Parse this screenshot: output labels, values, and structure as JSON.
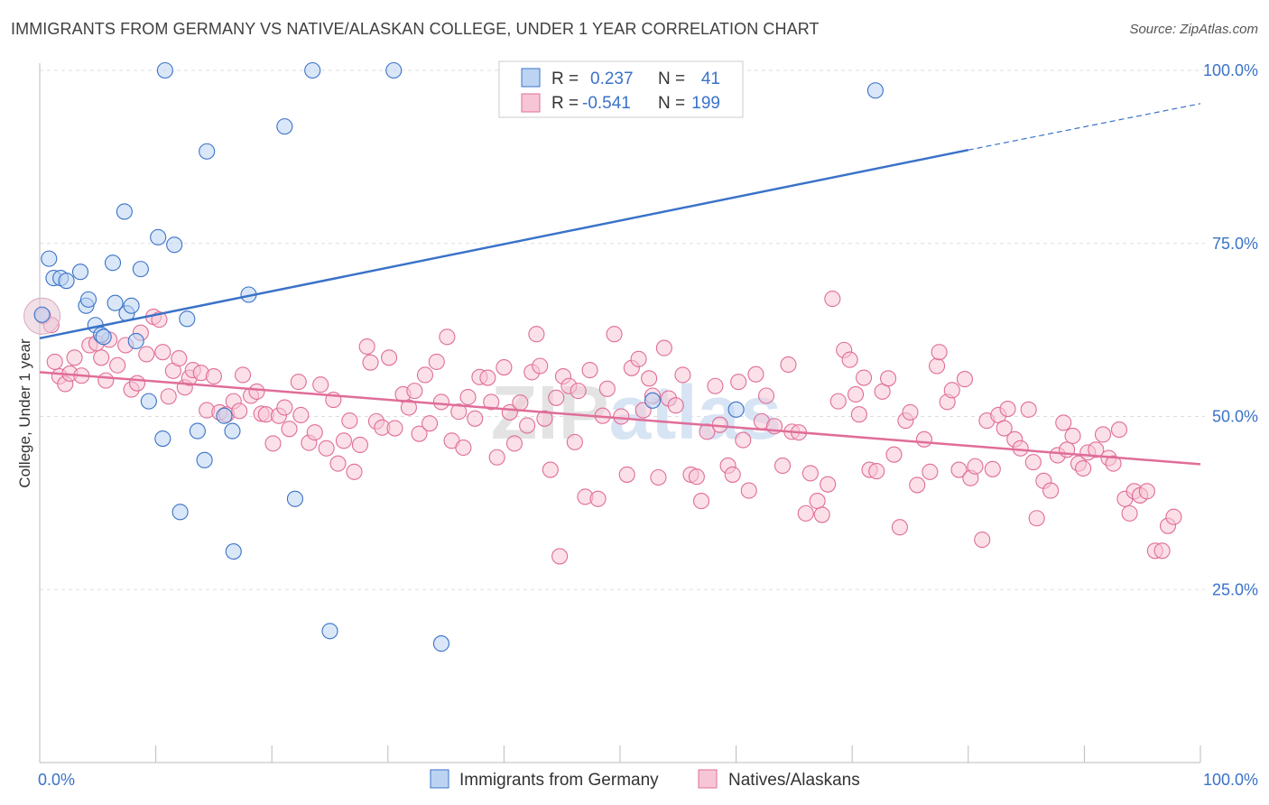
{
  "title": "IMMIGRANTS FROM GERMANY VS NATIVE/ALASKAN COLLEGE, UNDER 1 YEAR CORRELATION CHART",
  "source": "Source: ZipAtlas.com",
  "watermark": "ZIPatlas",
  "colors": {
    "blue": "#3a72c8",
    "blue_fill": "#bcd4f2",
    "pink": "#e06d98",
    "pink_fill": "#f7c6d6"
  },
  "legend": {
    "rows": [
      {
        "r_label": "R =",
        "r_value": "0.237",
        "n_label": "N =",
        "n_value": "41"
      },
      {
        "r_label": "R =",
        "r_value": "-0.541",
        "n_label": "N =",
        "n_value": "199"
      }
    ]
  },
  "bottom_legend": [
    "Immigrants from Germany",
    "Natives/Alaskans"
  ],
  "chart_data": {
    "type": "scatter",
    "title": "IMMIGRANTS FROM GERMANY VS NATIVE/ALASKAN COLLEGE, UNDER 1 YEAR CORRELATION CHART",
    "xlabel": "",
    "ylabel": "College, Under 1 year",
    "xlim": [
      0,
      100
    ],
    "ylim": [
      0,
      105
    ],
    "x_tick_labels": [
      "0.0%",
      "100.0%"
    ],
    "y_tick_labels": [
      "25.0%",
      "50.0%",
      "75.0%",
      "100.0%"
    ],
    "y_ticks": [
      25,
      50,
      75,
      100
    ],
    "grid": true,
    "series": [
      {
        "name": "Immigrants from Germany",
        "color": "#3a72c8",
        "trend": {
          "x0": 0,
          "y0": 61.3,
          "x1": 80,
          "y1": 88.5,
          "dash_to": 100,
          "dash_y": 95.2
        },
        "points": [
          [
            0.2,
            64.7
          ],
          [
            0.8,
            72.8
          ],
          [
            1.2,
            70.0
          ],
          [
            1.8,
            70.0
          ],
          [
            2.3,
            69.6
          ],
          [
            3.5,
            70.9
          ],
          [
            4.0,
            66.0
          ],
          [
            4.2,
            66.9
          ],
          [
            4.8,
            63.2
          ],
          [
            5.3,
            61.8
          ],
          [
            6.3,
            72.2
          ],
          [
            6.5,
            66.4
          ],
          [
            7.3,
            79.6
          ],
          [
            7.5,
            64.9
          ],
          [
            7.9,
            66.0
          ],
          [
            8.3,
            60.9
          ],
          [
            8.7,
            71.3
          ],
          [
            9.4,
            52.2
          ],
          [
            10.2,
            75.9
          ],
          [
            10.6,
            46.8
          ],
          [
            10.8,
            100.0
          ],
          [
            11.6,
            74.8
          ],
          [
            12.1,
            36.2
          ],
          [
            12.7,
            64.1
          ],
          [
            13.6,
            47.9
          ],
          [
            14.2,
            43.7
          ],
          [
            14.4,
            88.3
          ],
          [
            15.9,
            50.1
          ],
          [
            16.6,
            47.9
          ],
          [
            16.7,
            30.5
          ],
          [
            18.0,
            67.6
          ],
          [
            21.1,
            91.9
          ],
          [
            22.0,
            38.1
          ],
          [
            23.5,
            100.0
          ],
          [
            25.0,
            19.0
          ],
          [
            30.5,
            100.0
          ],
          [
            34.6,
            17.2
          ],
          [
            52.8,
            52.3
          ],
          [
            60.0,
            51.0
          ],
          [
            72.0,
            97.1
          ],
          [
            5.5,
            61.5
          ]
        ]
      },
      {
        "name": "Natives/Alaskans",
        "color": "#e06d98",
        "trend": {
          "x0": 0,
          "y0": 56.4,
          "x1": 100,
          "y1": 43.1
        },
        "points": [
          [
            0.3,
            64.5
          ],
          [
            1.0,
            63.2
          ],
          [
            1.3,
            57.9
          ],
          [
            1.7,
            55.8
          ],
          [
            2.2,
            54.7
          ],
          [
            2.6,
            56.2
          ],
          [
            3.0,
            58.5
          ],
          [
            3.6,
            55.9
          ],
          [
            4.3,
            60.3
          ],
          [
            4.9,
            60.6
          ],
          [
            5.3,
            58.5
          ],
          [
            5.7,
            55.2
          ],
          [
            6.0,
            61.1
          ],
          [
            6.7,
            57.4
          ],
          [
            7.4,
            60.3
          ],
          [
            7.9,
            53.9
          ],
          [
            8.4,
            54.8
          ],
          [
            8.7,
            62.1
          ],
          [
            9.2,
            59.0
          ],
          [
            9.8,
            64.4
          ],
          [
            10.3,
            64.0
          ],
          [
            10.6,
            59.3
          ],
          [
            11.1,
            52.9
          ],
          [
            11.5,
            56.6
          ],
          [
            12.0,
            58.4
          ],
          [
            12.5,
            54.2
          ],
          [
            12.9,
            55.6
          ],
          [
            13.2,
            56.7
          ],
          [
            13.9,
            56.3
          ],
          [
            14.4,
            50.9
          ],
          [
            15.0,
            55.8
          ],
          [
            15.5,
            50.6
          ],
          [
            16.1,
            50.3
          ],
          [
            16.7,
            52.2
          ],
          [
            17.2,
            50.8
          ],
          [
            17.5,
            56.0
          ],
          [
            18.2,
            53.0
          ],
          [
            18.7,
            53.6
          ],
          [
            19.1,
            50.4
          ],
          [
            19.5,
            50.3
          ],
          [
            20.1,
            46.1
          ],
          [
            20.6,
            50.1
          ],
          [
            21.1,
            51.3
          ],
          [
            21.5,
            48.2
          ],
          [
            22.3,
            55.0
          ],
          [
            22.5,
            50.2
          ],
          [
            23.2,
            46.2
          ],
          [
            23.7,
            47.7
          ],
          [
            24.2,
            54.6
          ],
          [
            24.7,
            45.4
          ],
          [
            25.3,
            52.4
          ],
          [
            25.7,
            43.2
          ],
          [
            26.2,
            46.5
          ],
          [
            26.7,
            49.4
          ],
          [
            27.1,
            42.0
          ],
          [
            27.6,
            45.9
          ],
          [
            28.2,
            60.1
          ],
          [
            28.5,
            57.8
          ],
          [
            29.0,
            49.3
          ],
          [
            29.5,
            48.4
          ],
          [
            30.1,
            58.5
          ],
          [
            30.6,
            48.3
          ],
          [
            31.3,
            53.2
          ],
          [
            31.8,
            51.3
          ],
          [
            32.3,
            53.7
          ],
          [
            32.7,
            47.5
          ],
          [
            33.2,
            56.0
          ],
          [
            33.6,
            49.0
          ],
          [
            34.2,
            57.9
          ],
          [
            34.6,
            52.1
          ],
          [
            35.1,
            61.5
          ],
          [
            35.5,
            46.5
          ],
          [
            36.1,
            50.7
          ],
          [
            36.5,
            45.5
          ],
          [
            36.9,
            52.8
          ],
          [
            37.5,
            49.7
          ],
          [
            37.9,
            55.7
          ],
          [
            38.6,
            55.6
          ],
          [
            38.9,
            52.1
          ],
          [
            39.4,
            44.1
          ],
          [
            40.0,
            57.1
          ],
          [
            40.5,
            50.6
          ],
          [
            40.9,
            46.1
          ],
          [
            41.4,
            52.0
          ],
          [
            42.0,
            48.7
          ],
          [
            42.4,
            56.4
          ],
          [
            42.8,
            61.9
          ],
          [
            43.1,
            57.3
          ],
          [
            43.5,
            49.7
          ],
          [
            44.0,
            42.3
          ],
          [
            44.5,
            52.7
          ],
          [
            44.8,
            29.8
          ],
          [
            45.1,
            55.8
          ],
          [
            45.6,
            54.4
          ],
          [
            46.1,
            46.3
          ],
          [
            46.4,
            53.7
          ],
          [
            47.0,
            38.4
          ],
          [
            47.4,
            56.7
          ],
          [
            48.1,
            38.1
          ],
          [
            48.5,
            50.1
          ],
          [
            48.9,
            54.0
          ],
          [
            49.5,
            61.9
          ],
          [
            50.1,
            50.0
          ],
          [
            50.6,
            41.6
          ],
          [
            51.0,
            57.0
          ],
          [
            51.6,
            58.3
          ],
          [
            52.0,
            50.9
          ],
          [
            52.5,
            55.5
          ],
          [
            52.8,
            53.0
          ],
          [
            53.3,
            41.2
          ],
          [
            53.8,
            59.9
          ],
          [
            54.2,
            52.6
          ],
          [
            54.8,
            51.6
          ],
          [
            55.4,
            56.0
          ],
          [
            56.1,
            41.6
          ],
          [
            56.6,
            41.3
          ],
          [
            57.0,
            37.8
          ],
          [
            57.5,
            47.8
          ],
          [
            58.2,
            54.4
          ],
          [
            58.6,
            48.8
          ],
          [
            59.3,
            42.9
          ],
          [
            59.7,
            41.6
          ],
          [
            60.2,
            55.0
          ],
          [
            60.6,
            46.6
          ],
          [
            61.1,
            39.3
          ],
          [
            61.7,
            56.1
          ],
          [
            62.2,
            49.3
          ],
          [
            62.6,
            53.0
          ],
          [
            63.3,
            48.6
          ],
          [
            64.0,
            42.9
          ],
          [
            64.5,
            57.5
          ],
          [
            64.8,
            47.8
          ],
          [
            65.4,
            47.7
          ],
          [
            66.0,
            36.0
          ],
          [
            66.4,
            41.8
          ],
          [
            67.0,
            37.8
          ],
          [
            67.4,
            35.8
          ],
          [
            67.9,
            40.2
          ],
          [
            68.3,
            67.0
          ],
          [
            68.8,
            52.2
          ],
          [
            69.3,
            59.6
          ],
          [
            69.8,
            58.2
          ],
          [
            70.3,
            53.2
          ],
          [
            70.6,
            50.3
          ],
          [
            71.0,
            55.6
          ],
          [
            71.5,
            42.3
          ],
          [
            72.1,
            42.1
          ],
          [
            72.6,
            53.6
          ],
          [
            73.1,
            55.5
          ],
          [
            73.6,
            44.5
          ],
          [
            74.1,
            34.0
          ],
          [
            74.6,
            49.4
          ],
          [
            75.0,
            50.6
          ],
          [
            75.6,
            40.1
          ],
          [
            76.2,
            46.7
          ],
          [
            76.7,
            42.0
          ],
          [
            77.3,
            57.3
          ],
          [
            77.5,
            59.3
          ],
          [
            78.2,
            52.1
          ],
          [
            78.6,
            53.8
          ],
          [
            79.2,
            42.3
          ],
          [
            79.7,
            55.4
          ],
          [
            80.2,
            41.1
          ],
          [
            80.6,
            42.8
          ],
          [
            81.2,
            32.2
          ],
          [
            81.6,
            49.4
          ],
          [
            82.1,
            42.4
          ],
          [
            82.6,
            50.2
          ],
          [
            83.1,
            48.3
          ],
          [
            83.4,
            51.1
          ],
          [
            84.0,
            46.7
          ],
          [
            84.5,
            45.4
          ],
          [
            85.2,
            51.0
          ],
          [
            85.6,
            43.4
          ],
          [
            85.9,
            35.3
          ],
          [
            86.5,
            40.7
          ],
          [
            87.1,
            39.3
          ],
          [
            87.7,
            44.4
          ],
          [
            88.2,
            49.1
          ],
          [
            88.5,
            45.2
          ],
          [
            89.0,
            47.2
          ],
          [
            89.5,
            43.2
          ],
          [
            89.9,
            42.5
          ],
          [
            90.3,
            44.8
          ],
          [
            91.0,
            45.2
          ],
          [
            91.6,
            47.4
          ],
          [
            92.1,
            44.0
          ],
          [
            92.5,
            43.2
          ],
          [
            93.0,
            48.1
          ],
          [
            93.5,
            38.1
          ],
          [
            93.9,
            36.0
          ],
          [
            94.3,
            39.2
          ],
          [
            94.8,
            38.6
          ],
          [
            95.4,
            39.2
          ],
          [
            96.1,
            30.6
          ],
          [
            96.7,
            30.6
          ],
          [
            97.2,
            34.2
          ],
          [
            97.7,
            35.5
          ]
        ]
      }
    ]
  }
}
